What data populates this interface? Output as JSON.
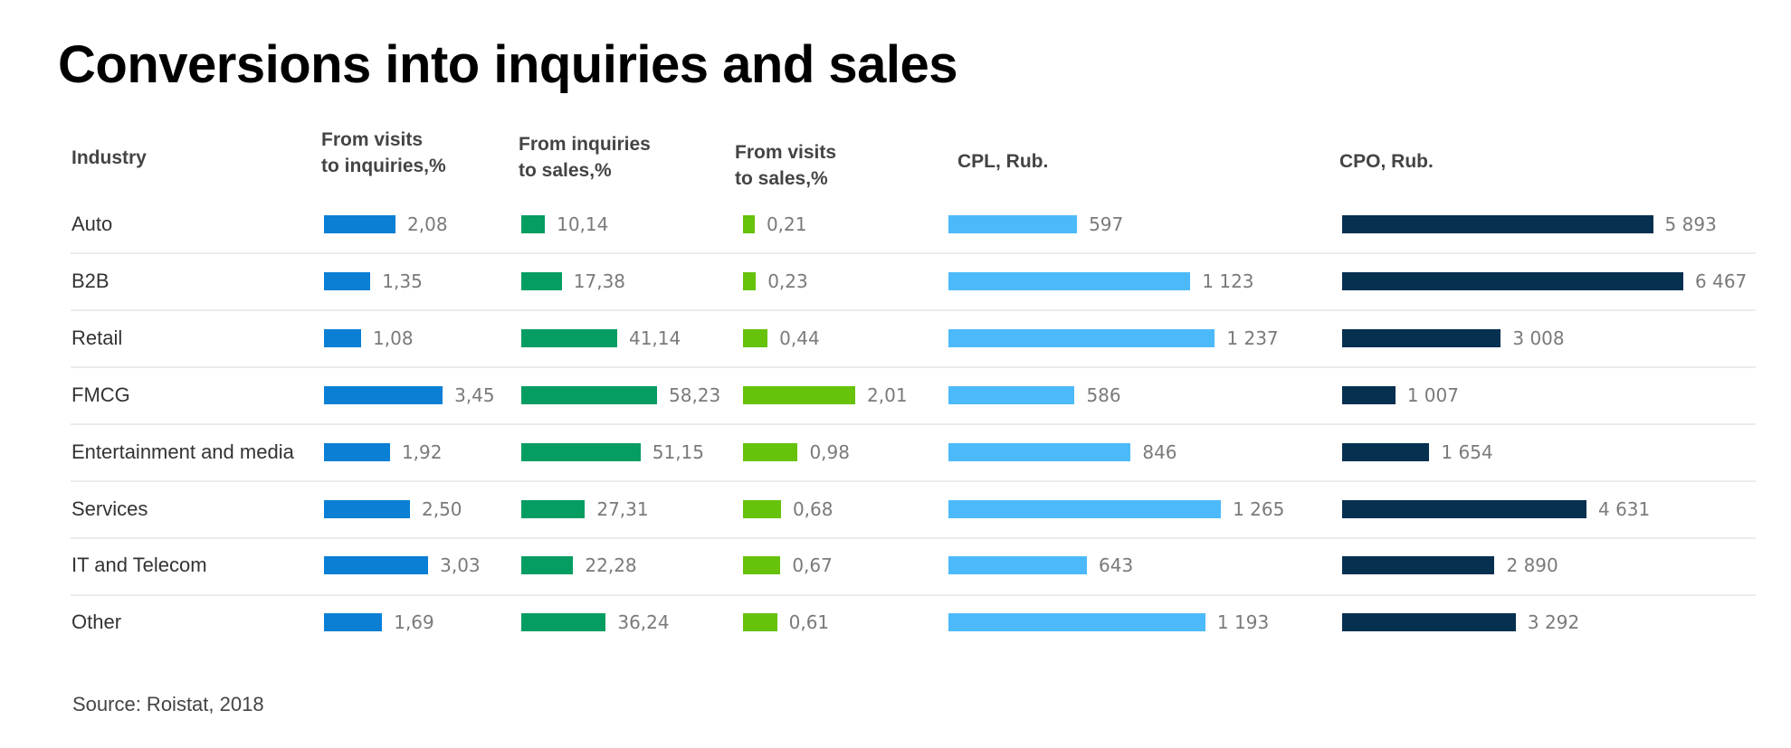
{
  "title": "Conversions into inquiries and sales",
  "source": "Source: Roistat, 2018",
  "chart_data": {
    "type": "bar",
    "orientation": "horizontal",
    "title": "Conversions into inquiries and sales",
    "row_header": "Industry",
    "categories": [
      "Auto",
      "B2B",
      "Retail",
      "FMCG",
      "Entertainment and media",
      "Services",
      "IT and Telecom",
      "Other"
    ],
    "series": [
      {
        "name": "From visits to inquiries,%",
        "header_lines": [
          "From  visits",
          "to inquiries,%"
        ],
        "color": "#0a7fd4",
        "values": [
          2.08,
          1.35,
          1.08,
          3.45,
          1.92,
          2.5,
          3.03,
          1.69
        ],
        "labels": [
          "2,08",
          "1,35",
          "1,08",
          "3,45",
          "1,92",
          "2,50",
          "3,03",
          "1,69"
        ]
      },
      {
        "name": "From inquiries to sales,%",
        "header_lines": [
          "From inquiries",
          "to sales,%"
        ],
        "color": "#069d62",
        "values": [
          10.14,
          17.38,
          41.14,
          58.23,
          51.15,
          27.31,
          22.28,
          36.24
        ],
        "labels": [
          "10,14",
          "17,38",
          "41,14",
          "58,23",
          "51,15",
          "27,31",
          "22,28",
          "36,24"
        ]
      },
      {
        "name": "From visits to sales,%",
        "header_lines": [
          "From visits",
          "to sales,%"
        ],
        "color": "#66c20a",
        "values": [
          0.21,
          0.23,
          0.44,
          2.01,
          0.98,
          0.68,
          0.67,
          0.61
        ],
        "labels": [
          "0,21",
          "0,23",
          "0,44",
          "2,01",
          "0,98",
          "0,68",
          "0,67",
          "0,61"
        ]
      },
      {
        "name": "CPL, Rub.",
        "header_lines": [
          "CPL, Rub."
        ],
        "color": "#4cbafa",
        "values": [
          597,
          1123,
          1237,
          586,
          846,
          1265,
          643,
          1193
        ],
        "labels": [
          "597",
          "1 123",
          "1 237",
          "586",
          "846",
          "1 265",
          "643",
          "1 193"
        ]
      },
      {
        "name": "CPO, Rub.",
        "header_lines": [
          "CPO, Rub."
        ],
        "color": "#063050",
        "values": [
          5893,
          6467,
          3008,
          1007,
          1654,
          4631,
          2890,
          3292
        ],
        "labels": [
          "5 893",
          "6 467",
          "3 008",
          "1 007",
          "1 654",
          "4 631",
          "2 890",
          "3 292"
        ]
      }
    ],
    "grid": false,
    "legend": "none"
  }
}
